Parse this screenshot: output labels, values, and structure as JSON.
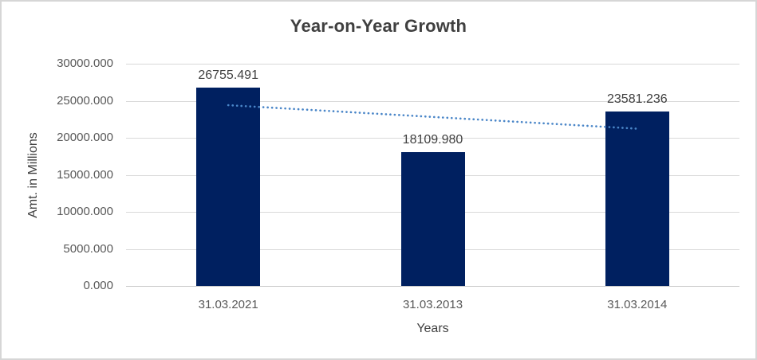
{
  "chart_data": {
    "type": "bar",
    "title": "Year-on-Year Growth",
    "xlabel": "Years",
    "ylabel": "Amt. in Millions",
    "categories": [
      "31.03.2021",
      "31.03.2013",
      "31.03.2014"
    ],
    "values": [
      26755.491,
      18109.98,
      23581.236
    ],
    "data_labels": [
      "26755.491",
      "18109.980",
      "23581.236"
    ],
    "ylim": [
      0,
      30000
    ],
    "ytick_step": 5000,
    "ytick_labels": [
      "0.000",
      "5000.000",
      "10000.000",
      "15000.000",
      "20000.000",
      "25000.000",
      "30000.000"
    ],
    "grid": true,
    "legend_position": "none",
    "trendline": {
      "type": "linear",
      "style": "dotted",
      "color": "#4a86c8"
    },
    "colors": {
      "bar": "#002060",
      "gridline": "#d9d9d9",
      "axis_line": "#c9c9c9",
      "title_text": "#404040",
      "data_label_text": "#404040",
      "tick_text": "#595959",
      "axis_title_text": "#404040",
      "frame_border": "#d6d6d6",
      "background": "#ffffff"
    }
  }
}
